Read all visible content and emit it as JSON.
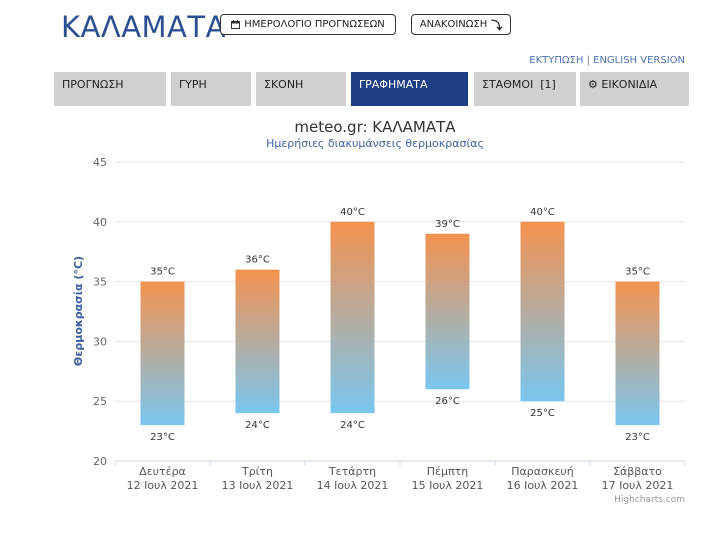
{
  "header": {
    "city": "ΚΑΛΑΜΑΤΑ",
    "calendar_button": "ΗΜΕΡΟΛΟΓΙΟ ΠΡΟΓΝΩΣΕΩΝ",
    "announcement_button": "ΑΝΑΚΟΙΝΩΣΗ"
  },
  "links": {
    "print": "ΕΚΤΥΠΩΣΗ",
    "separator": "|",
    "english": "ENGLISH VERSION"
  },
  "tabs": [
    {
      "label": "ΠΡΟΓΝΩΣΗ",
      "active": false
    },
    {
      "label": "ΓΥΡΗ",
      "active": false
    },
    {
      "label": "ΣΚΟΝΗ",
      "active": false
    },
    {
      "label": "ΓΡΑΦΗΜΑΤΑ",
      "active": true
    },
    {
      "label": "ΣΤΑΘΜΟΙ  [1]",
      "active": false
    },
    {
      "label": "ΕΙΚΟΝΙΔΙΑ",
      "active": false
    }
  ],
  "chart_data": {
    "type": "bar",
    "title": "meteo.gr: ΚΑΛΑΜΑΤΑ",
    "subtitle": "Ημερήσιες διακυμάνσεις θερμοκρασίας",
    "ylabel": "Θερμοκρασία (°C)",
    "ylim": [
      20,
      45
    ],
    "yticks": [
      "20",
      "25",
      "30",
      "35",
      "40",
      "45"
    ],
    "categories": [
      [
        "Δευτέρα",
        "12 Ιουλ 2021"
      ],
      [
        "Τρίτη",
        "13 Ιουλ 2021"
      ],
      [
        "Τετάρτη",
        "14 Ιουλ 2021"
      ],
      [
        "Πέμπτη",
        "15 Ιουλ 2021"
      ],
      [
        "Παρασκευή",
        "16 Ιουλ 2021"
      ],
      [
        "Σάββατο",
        "17 Ιουλ 2021"
      ]
    ],
    "low": [
      23,
      24,
      24,
      26,
      25,
      23
    ],
    "high": [
      35,
      36,
      40,
      39,
      40,
      35
    ],
    "low_labels": [
      "23°C",
      "24°C",
      "24°C",
      "26°C",
      "25°C",
      "23°C"
    ],
    "high_labels": [
      "35°C",
      "36°C",
      "40°C",
      "39°C",
      "40°C",
      "35°C"
    ],
    "grid": true,
    "credits": "Highcharts.com",
    "colors": {
      "hot": "#f4924f",
      "cold": "#79c6f0",
      "title": "#333333",
      "subtitle": "#3b5fa0",
      "axis_title": "#3b5fa0"
    }
  }
}
